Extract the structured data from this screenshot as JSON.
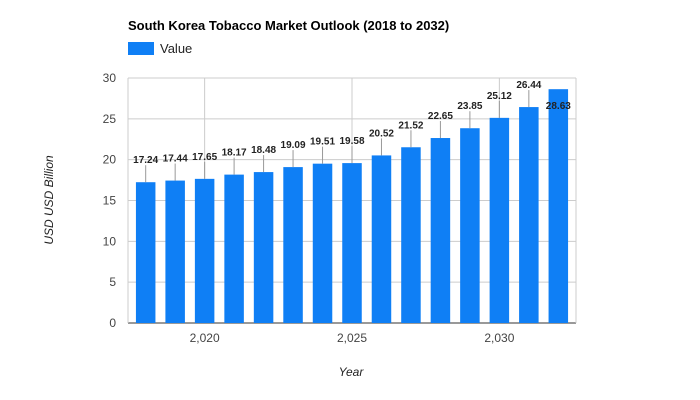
{
  "chart_data": {
    "type": "bar",
    "title": "South Korea Tobacco Market Outlook (2018 to 2032)",
    "xlabel": "Year",
    "ylabel": "USD USD Billion",
    "legend": {
      "entries": [
        "Value"
      ],
      "placement": "top-left"
    },
    "series": [
      {
        "name": "Value",
        "color": "#0f7ff5",
        "x": [
          2018,
          2019,
          2020,
          2021,
          2022,
          2023,
          2024,
          2025,
          2026,
          2027,
          2028,
          2029,
          2030,
          2031,
          2032
        ],
        "values": [
          17.24,
          17.44,
          17.65,
          18.17,
          18.48,
          19.09,
          19.51,
          19.58,
          20.52,
          21.52,
          22.65,
          23.85,
          25.12,
          26.44,
          28.63
        ],
        "labels": [
          "17.24",
          "17.44",
          "17.65",
          "18.17",
          "18.48",
          "19.09",
          "19.51",
          "19.58",
          "20.52",
          "21.52",
          "22.65",
          "23.85",
          "25.12",
          "26.44",
          "28.63"
        ]
      }
    ],
    "ylim": [
      0,
      30
    ],
    "yticks": [
      0,
      5,
      10,
      15,
      20,
      25,
      30
    ],
    "ytick_labels": [
      "0",
      "5",
      "10",
      "15",
      "20",
      "25",
      "30"
    ],
    "xlim": [
      2017.4,
      2032.6
    ],
    "xticks": [
      2020,
      2025,
      2030
    ],
    "xtick_labels": [
      "2,020",
      "2,025",
      "2,030"
    ],
    "grid": true
  }
}
